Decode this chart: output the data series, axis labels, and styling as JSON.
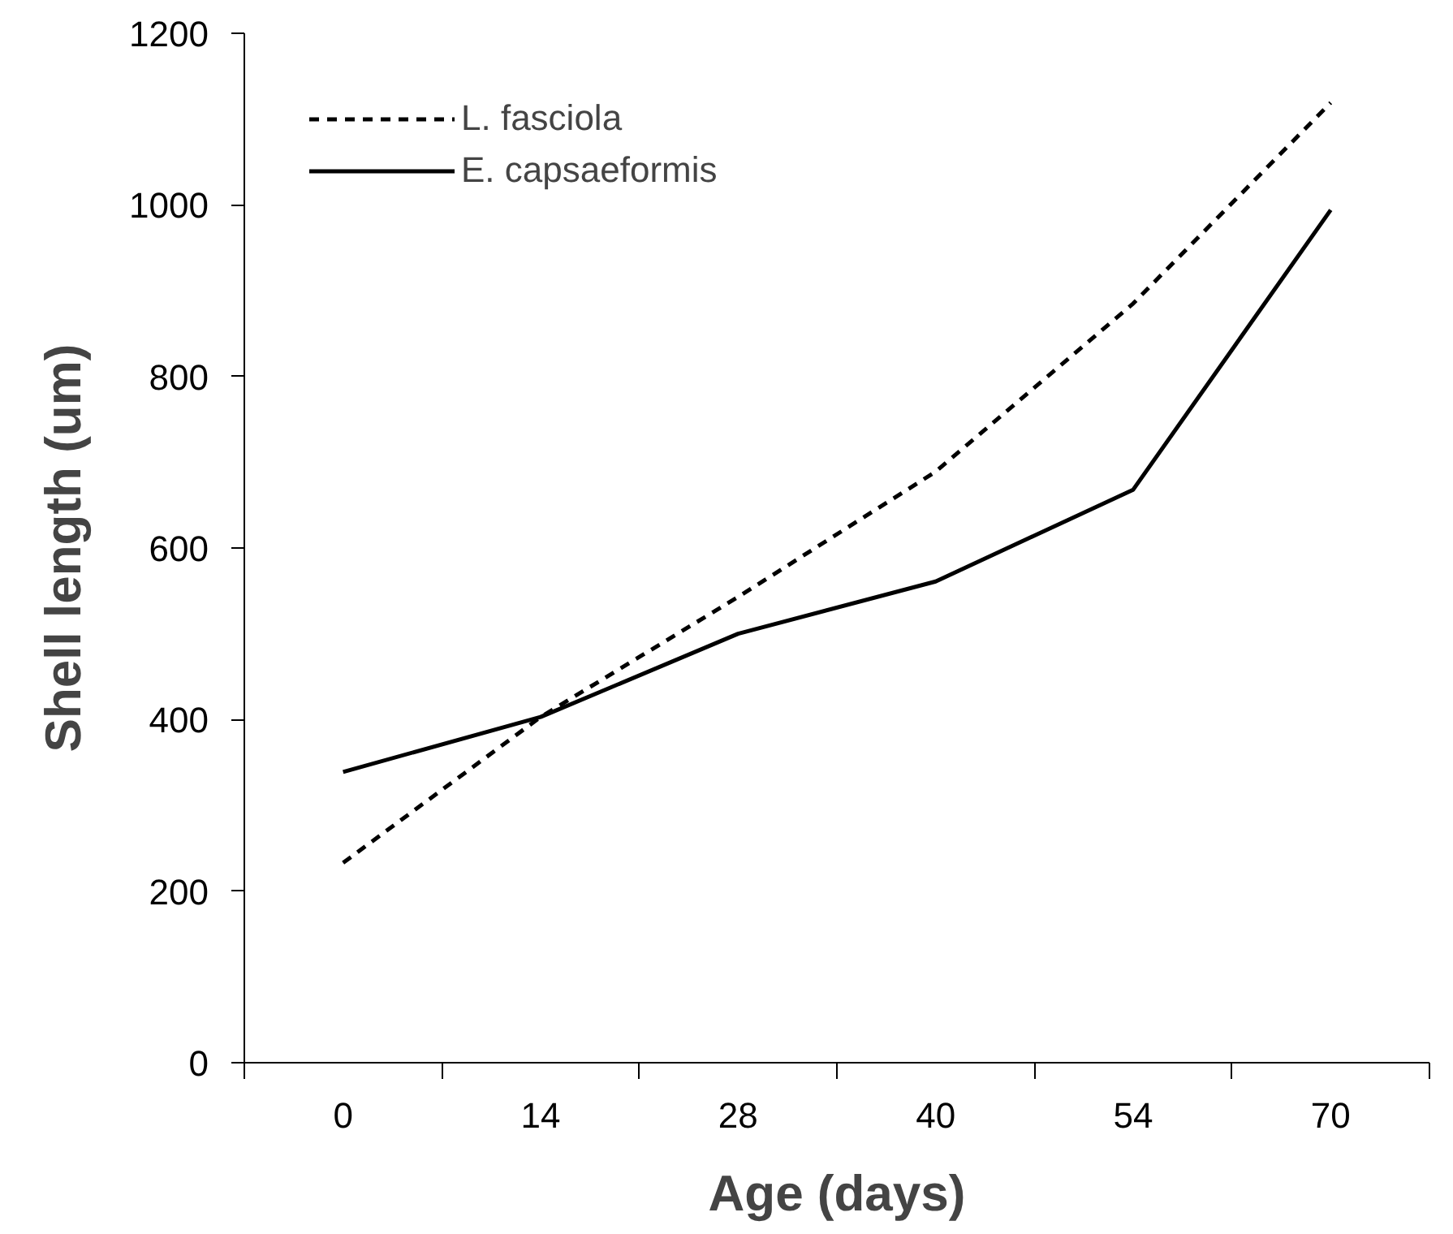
{
  "chart_data": {
    "type": "line",
    "xlabel": "Age (days)",
    "ylabel": "Shell length (um)",
    "categories": [
      "0",
      "14",
      "28",
      "40",
      "54",
      "70"
    ],
    "series": [
      {
        "name": "L. fasciola",
        "color": "#000000",
        "line_style": "dashed",
        "values": [
          233,
          403,
          543,
          689,
          885,
          1119
        ]
      },
      {
        "name": "E. capsaeformis",
        "color": "#000000",
        "line_style": "solid",
        "values": [
          339,
          403,
          500,
          561,
          668,
          994
        ]
      }
    ],
    "ylim": [
      0,
      1200
    ],
    "yticks": [
      0,
      200,
      400,
      600,
      800,
      1000,
      1200
    ],
    "grid": false,
    "legend": "top left",
    "marker": "none"
  }
}
